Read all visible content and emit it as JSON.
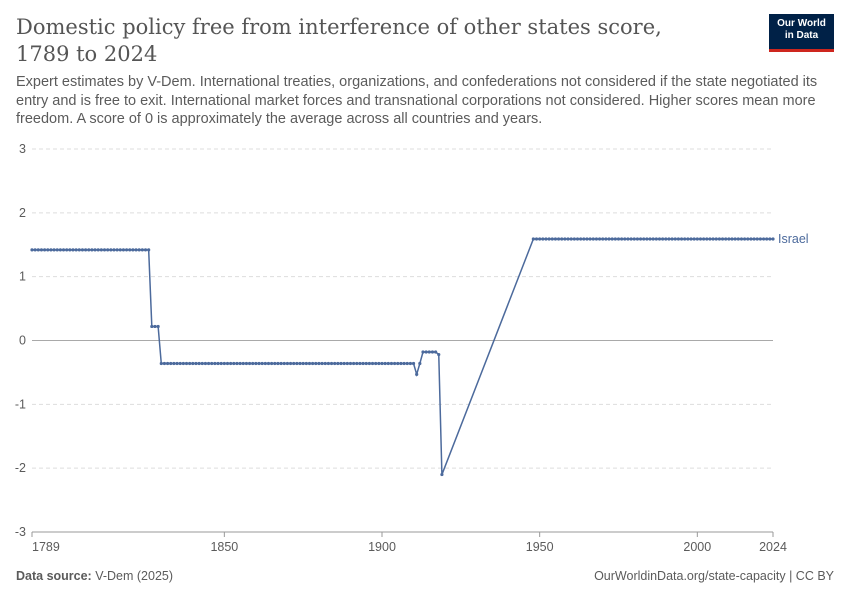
{
  "header": {
    "title": "Domestic policy free from interference of other states score, 1789 to 2024",
    "subtitle": "Expert estimates by V-Dem. International treaties, organizations, and confederations not considered if the state negotiated its entry and is free to exit. International market forces and transnational corporations not considered. Higher scores mean more freedom. A score of 0 is approximately the average across all countries and years.",
    "logo_line1": "Our World",
    "logo_line2": "in Data"
  },
  "footer": {
    "source_label": "Data source:",
    "source_value": "V-Dem (2025)",
    "right": "OurWorldinData.org/state-capacity | CC BY"
  },
  "colors": {
    "series": "#4c6a9c",
    "grid": "#dddddd",
    "zero_line": "#a9a9a9",
    "text": "#5b5b5b"
  },
  "chart_data": {
    "type": "line",
    "title": "Domestic policy free from interference of other states score, 1789 to 2024",
    "xlabel": "",
    "ylabel": "",
    "xlim": [
      1789,
      2024
    ],
    "ylim": [
      -3,
      3
    ],
    "x_ticks": [
      1789,
      1850,
      1900,
      1950,
      2000,
      2024
    ],
    "y_ticks": [
      3,
      2,
      1,
      0,
      -1,
      -2,
      -3
    ],
    "grid": true,
    "legend": "end-of-line label",
    "series": [
      {
        "name": "Israel",
        "segments": [
          [
            1789,
            1826,
            1.42
          ],
          [
            1827,
            1827,
            0.22
          ],
          [
            1828,
            1828,
            0.22
          ],
          [
            1829,
            1829,
            0.22
          ],
          [
            1830,
            1910,
            -0.36
          ],
          [
            1911,
            1911,
            -0.53
          ],
          [
            1912,
            1912,
            -0.36
          ],
          [
            1913,
            1917,
            -0.18
          ],
          [
            1918,
            1918,
            -0.22
          ],
          [
            1919,
            1919,
            -2.1
          ],
          [
            1948,
            2024,
            1.59
          ]
        ]
      }
    ]
  }
}
